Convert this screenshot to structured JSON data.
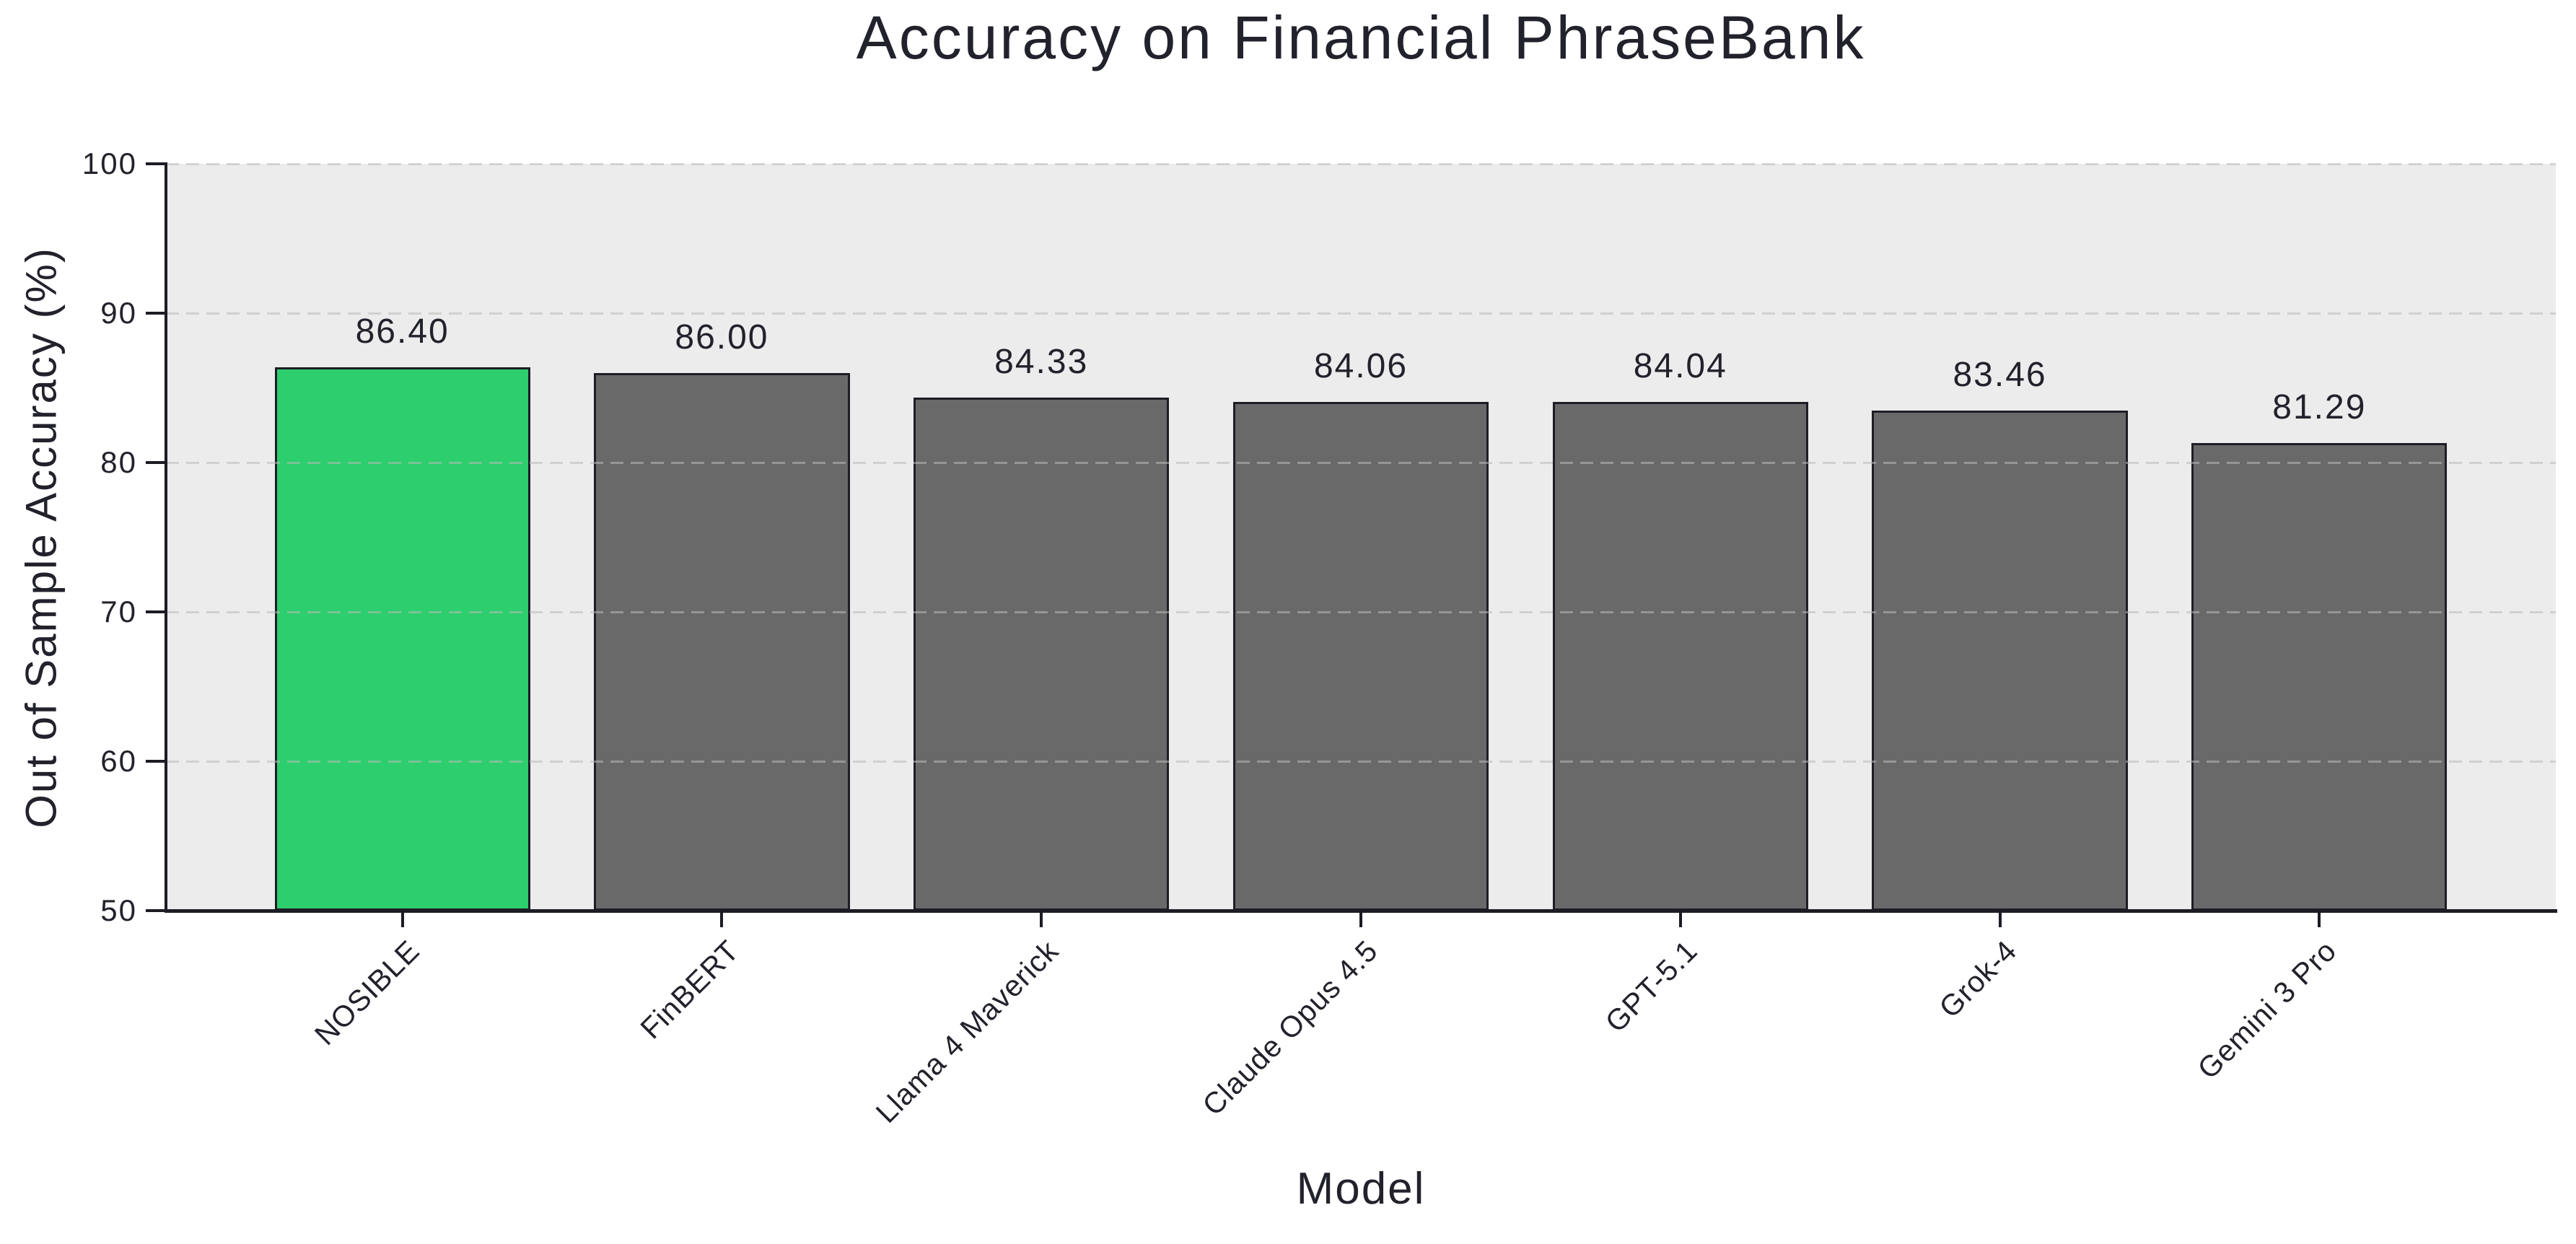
{
  "chart_data": {
    "type": "bar",
    "title": "Accuracy on Financial PhraseBank",
    "xlabel": "Model",
    "ylabel": "Out of Sample Accuracy (%)",
    "categories": [
      "NOSIBLE",
      "FinBERT",
      "Llama 4 Maverick",
      "Claude Opus 4.5",
      "GPT-5.1",
      "Grok-4",
      "Gemini 3 Pro"
    ],
    "values": [
      86.4,
      86.0,
      84.33,
      84.06,
      84.04,
      83.46,
      81.29
    ],
    "value_labels": [
      "86.40",
      "86.00",
      "84.33",
      "84.06",
      "84.04",
      "83.46",
      "81.29"
    ],
    "bar_colors": [
      "#2dce6d",
      "#696969",
      "#696969",
      "#696969",
      "#696969",
      "#696969",
      "#696969"
    ],
    "highlight_color": "#2dce6d",
    "default_bar_color": "#696969",
    "bar_edge_color": "#1d1d26",
    "ylim": [
      50,
      100
    ],
    "yticks": [
      50,
      60,
      70,
      80,
      90,
      100
    ],
    "xtick_rotation_deg": 45,
    "grid": "horizontal dashed, drawn above bars",
    "legend": "none",
    "plot_background": "#ececec",
    "figure_background": "#ffffff",
    "text_color": "#22222c"
  }
}
